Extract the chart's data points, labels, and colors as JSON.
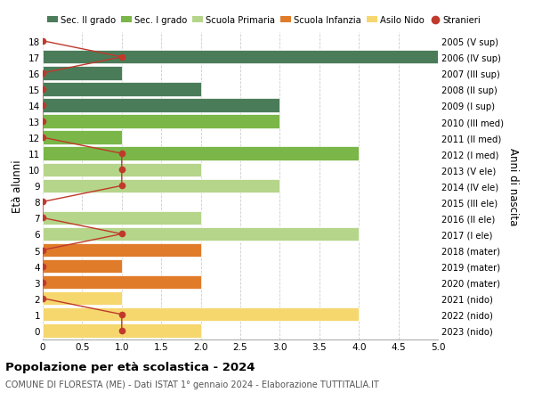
{
  "ages": [
    18,
    17,
    16,
    15,
    14,
    13,
    12,
    11,
    10,
    9,
    8,
    7,
    6,
    5,
    4,
    3,
    2,
    1,
    0
  ],
  "years": [
    "2005 (V sup)",
    "2006 (IV sup)",
    "2007 (III sup)",
    "2008 (II sup)",
    "2009 (I sup)",
    "2010 (III med)",
    "2011 (II med)",
    "2012 (I med)",
    "2013 (V ele)",
    "2014 (IV ele)",
    "2015 (III ele)",
    "2016 (II ele)",
    "2017 (I ele)",
    "2018 (mater)",
    "2019 (mater)",
    "2020 (mater)",
    "2021 (nido)",
    "2022 (nido)",
    "2023 (nido)"
  ],
  "bar_values": [
    0,
    5,
    1,
    2,
    3,
    3,
    1,
    4,
    2,
    3,
    0,
    2,
    4,
    2,
    1,
    2,
    1,
    4,
    2
  ],
  "bar_colors": [
    "#4a7c59",
    "#4a7c59",
    "#4a7c59",
    "#4a7c59",
    "#4a7c59",
    "#7ab648",
    "#7ab648",
    "#7ab648",
    "#b5d58a",
    "#b5d58a",
    "#b5d58a",
    "#b5d58a",
    "#b5d58a",
    "#e07b2a",
    "#e07b2a",
    "#e07b2a",
    "#f5d76e",
    "#f5d76e",
    "#f5d76e"
  ],
  "stranieri_x": [
    0,
    1,
    0,
    0,
    0,
    0,
    0,
    1,
    1,
    1,
    0,
    0,
    1,
    0,
    0,
    0,
    0,
    1,
    1
  ],
  "legend_labels": [
    "Sec. II grado",
    "Sec. I grado",
    "Scuola Primaria",
    "Scuola Infanzia",
    "Asilo Nido",
    "Stranieri"
  ],
  "legend_colors": [
    "#4a7c59",
    "#7ab648",
    "#b5d58a",
    "#e07b2a",
    "#f5d76e",
    "#c0392b"
  ],
  "title": "Popolazione per età scolastica - 2024",
  "subtitle": "COMUNE DI FLORESTA (ME) - Dati ISTAT 1° gennaio 2024 - Elaborazione TUTTITALIA.IT",
  "ylabel_left": "Età alunni",
  "ylabel_right": "Anni di nascita",
  "xlim": [
    0,
    5.0
  ],
  "background_color": "#ffffff",
  "bar_height": 0.85,
  "stranieri_color": "#c0392b",
  "grid_color": "#cccccc"
}
